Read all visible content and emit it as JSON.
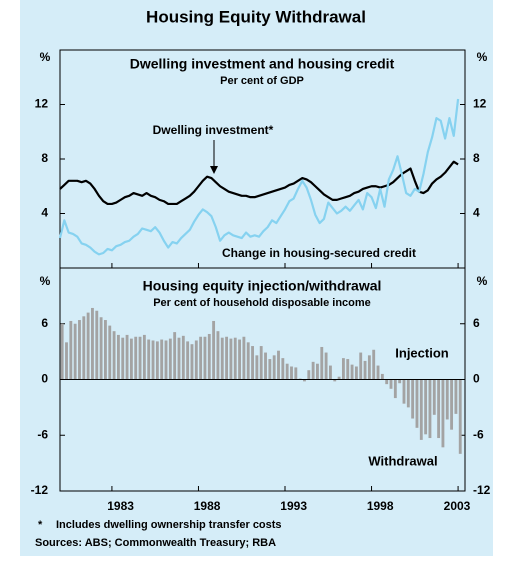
{
  "title": "Housing Equity Withdrawal",
  "chart_data": [
    {
      "type": "line",
      "title": "Dwelling investment and housing credit",
      "subtitle": "Per cent of GDP",
      "y_unit": "%",
      "annotations": [
        "Dwelling investment*",
        "Change in housing-secured credit"
      ],
      "x": [
        1980,
        1980.25,
        1980.5,
        1980.75,
        1981,
        1981.25,
        1981.5,
        1981.75,
        1982,
        1982.25,
        1982.5,
        1982.75,
        1983,
        1983.25,
        1983.5,
        1983.75,
        1984,
        1984.25,
        1984.5,
        1984.75,
        1985,
        1985.25,
        1985.5,
        1985.75,
        1986,
        1986.25,
        1986.5,
        1986.75,
        1987,
        1987.25,
        1987.5,
        1987.75,
        1988,
        1988.25,
        1988.5,
        1988.75,
        1989,
        1989.25,
        1989.5,
        1989.75,
        1990,
        1990.25,
        1990.5,
        1990.75,
        1991,
        1991.25,
        1991.5,
        1991.75,
        1992,
        1992.25,
        1992.5,
        1992.75,
        1993,
        1993.25,
        1993.5,
        1993.75,
        1994,
        1994.25,
        1994.5,
        1994.75,
        1995,
        1995.25,
        1995.5,
        1995.75,
        1996,
        1996.25,
        1996.5,
        1996.75,
        1997,
        1997.25,
        1997.5,
        1997.75,
        1998,
        1998.25,
        1998.5,
        1998.75,
        1999,
        1999.25,
        1999.5,
        1999.75,
        2000,
        2000.25,
        2000.5,
        2000.75,
        2001,
        2001.25,
        2001.5,
        2001.75,
        2002,
        2002.25,
        2002.5,
        2002.75,
        2003
      ],
      "series": [
        {
          "name": "Dwelling investment",
          "color": "#000000",
          "values": [
            5.8,
            6.1,
            6.4,
            6.4,
            6.4,
            6.3,
            6.4,
            6.2,
            5.8,
            5.3,
            4.9,
            4.7,
            4.7,
            4.8,
            5.0,
            5.2,
            5.3,
            5.5,
            5.4,
            5.3,
            5.5,
            5.3,
            5.2,
            5.0,
            4.9,
            4.7,
            4.7,
            4.7,
            4.9,
            5.1,
            5.3,
            5.6,
            6.0,
            6.4,
            6.7,
            6.6,
            6.3,
            6.0,
            5.8,
            5.6,
            5.5,
            5.4,
            5.3,
            5.3,
            5.2,
            5.2,
            5.3,
            5.4,
            5.5,
            5.6,
            5.7,
            5.8,
            5.9,
            6.1,
            6.2,
            6.4,
            6.6,
            6.5,
            6.3,
            6.0,
            5.7,
            5.4,
            5.2,
            5.0,
            5.0,
            5.1,
            5.2,
            5.3,
            5.5,
            5.6,
            5.8,
            5.9,
            6.0,
            6.0,
            5.9,
            6.0,
            6.1,
            6.3,
            6.6,
            6.9,
            7.1,
            7.3,
            6.4,
            5.6,
            5.5,
            5.7,
            6.2,
            6.5,
            6.7,
            7.0,
            7.4,
            7.8,
            7.6
          ]
        },
        {
          "name": "Change in housing-secured credit",
          "color": "#86d2f0",
          "values": [
            2.2,
            3.5,
            2.6,
            2.5,
            2.3,
            1.8,
            1.7,
            1.5,
            1.2,
            1.0,
            1.1,
            1.4,
            1.3,
            1.6,
            1.7,
            1.9,
            2.0,
            2.3,
            2.5,
            2.9,
            2.8,
            2.7,
            3.0,
            2.6,
            2.0,
            1.5,
            1.9,
            1.8,
            2.2,
            2.5,
            2.8,
            3.4,
            3.9,
            4.3,
            4.1,
            3.8,
            3.0,
            2.0,
            2.4,
            2.6,
            2.4,
            2.3,
            2.2,
            2.6,
            2.3,
            2.4,
            2.3,
            2.7,
            3.0,
            3.5,
            3.3,
            3.8,
            4.3,
            4.9,
            5.1,
            5.8,
            6.4,
            5.9,
            5.0,
            3.9,
            3.3,
            3.6,
            4.8,
            4.4,
            4.0,
            4.2,
            4.5,
            4.2,
            4.6,
            5.0,
            4.3,
            5.5,
            5.2,
            4.4,
            5.8,
            4.5,
            6.5,
            7.2,
            8.2,
            6.9,
            5.5,
            5.3,
            5.8,
            5.6,
            6.9,
            8.5,
            9.6,
            11.0,
            10.8,
            9.5,
            11.0,
            9.7,
            12.4
          ]
        }
      ],
      "xlim": [
        1980,
        2003.4
      ],
      "xticks": [
        1983,
        1988,
        1993,
        1998,
        2003
      ],
      "ylim": [
        0,
        16
      ],
      "yticks": [
        4,
        8,
        12
      ]
    },
    {
      "type": "bar",
      "title": "Housing equity injection/withdrawal",
      "subtitle": "Per cent of household disposable income",
      "y_unit": "%",
      "annotations": [
        "Injection",
        "Withdrawal"
      ],
      "x": [
        1980,
        1980.25,
        1980.5,
        1980.75,
        1981,
        1981.25,
        1981.5,
        1981.75,
        1982,
        1982.25,
        1982.5,
        1982.75,
        1983,
        1983.25,
        1983.5,
        1983.75,
        1984,
        1984.25,
        1984.5,
        1984.75,
        1985,
        1985.25,
        1985.5,
        1985.75,
        1986,
        1986.25,
        1986.5,
        1986.75,
        1987,
        1987.25,
        1987.5,
        1987.75,
        1988,
        1988.25,
        1988.5,
        1988.75,
        1989,
        1989.25,
        1989.5,
        1989.75,
        1990,
        1990.25,
        1990.5,
        1990.75,
        1991,
        1991.25,
        1991.5,
        1991.75,
        1992,
        1992.25,
        1992.5,
        1992.75,
        1993,
        1993.25,
        1993.5,
        1993.75,
        1994,
        1994.25,
        1994.5,
        1994.75,
        1995,
        1995.25,
        1995.5,
        1995.75,
        1996,
        1996.25,
        1996.5,
        1996.75,
        1997,
        1997.25,
        1997.5,
        1997.75,
        1998,
        1998.25,
        1998.5,
        1998.75,
        1999,
        1999.25,
        1999.5,
        1999.75,
        2000,
        2000.25,
        2000.5,
        2000.75,
        2001,
        2001.25,
        2001.5,
        2001.75,
        2002,
        2002.25,
        2002.5,
        2002.75,
        2003
      ],
      "values": [
        6.0,
        4.0,
        6.3,
        6.0,
        6.4,
        6.8,
        7.2,
        7.7,
        7.4,
        6.7,
        6.4,
        5.8,
        5.2,
        4.8,
        4.5,
        4.8,
        4.4,
        4.6,
        4.6,
        4.8,
        4.3,
        4.2,
        4.1,
        4.3,
        4.2,
        4.4,
        5.1,
        4.5,
        4.7,
        4.1,
        3.8,
        4.2,
        4.6,
        4.6,
        4.9,
        6.3,
        5.2,
        4.5,
        4.6,
        4.4,
        4.5,
        4.3,
        4.6,
        4.0,
        3.6,
        2.6,
        3.6,
        2.9,
        2.2,
        2.6,
        3.1,
        2.3,
        1.7,
        1.4,
        1.3,
        0.1,
        -0.2,
        1.0,
        1.9,
        1.7,
        3.5,
        2.9,
        1.5,
        -0.2,
        0.3,
        2.3,
        2.2,
        1.6,
        1.4,
        2.9,
        2.0,
        2.6,
        3.2,
        1.5,
        0.6,
        -0.5,
        -1.0,
        -2.0,
        -0.4,
        -2.6,
        -3.0,
        -4.2,
        -5.2,
        -6.5,
        -5.9,
        -6.3,
        -3.8,
        -6.3,
        -7.3,
        -4.3,
        -5.4,
        -3.7,
        -8.0
      ],
      "color": "#a3a3a3",
      "xlim": [
        1980,
        2003.4
      ],
      "xticks": [
        1983,
        1988,
        1993,
        1998,
        2003
      ],
      "ylim": [
        -12,
        12
      ],
      "yticks": [
        -12,
        -6,
        0,
        6
      ]
    }
  ],
  "notes": {
    "marker": "*",
    "footnote": "Includes dwelling ownership transfer costs",
    "sources": "Sources: ABS; Commonwealth Treasury; RBA"
  }
}
